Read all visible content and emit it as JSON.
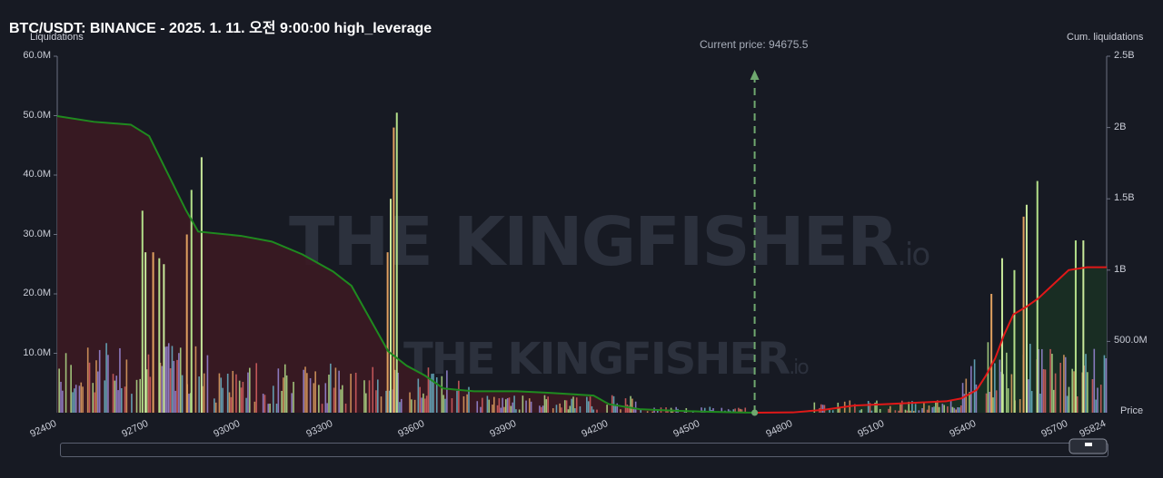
{
  "title": "BTC/USDT: BINANCE - 2025. 1. 11. 오전 9:00:00 high_leverage",
  "left_axis_title": "Liquidations",
  "right_axis_title": "Cum. liquidations",
  "x_axis_title": "Price",
  "current_price_label": "Current price: 94675.5",
  "watermark": {
    "brand": "THE KINGFISHER",
    "suffix": ".io"
  },
  "colors": {
    "background": "#171a23",
    "cum_left": "#1f8a1f",
    "cum_right": "#e01818",
    "bar_green": "#b4e08a",
    "bar_orange": "#e0a060",
    "bar_purple": "#9a8ad8",
    "bar_red": "#d86060",
    "bar_teal": "#6ab4c8",
    "fill_left": "#3b1a22",
    "fill_right": "#1a3024"
  },
  "chart_data": {
    "type": "bar",
    "title": "BTC/USDT: BINANCE - 2025. 1. 11. 오전 9:00:00 high_leverage",
    "xlabel": "Price",
    "ylabel": "Liquidations",
    "y2label": "Cum. liquidations",
    "xlim": [
      92400,
      95824
    ],
    "ylim": [
      0,
      60000000
    ],
    "y2lim": [
      0,
      2500000000
    ],
    "x_ticks": [
      "92400",
      "92700",
      "93000",
      "93300",
      "93600",
      "93900",
      "94200",
      "94500",
      "94800",
      "95100",
      "95400",
      "95700",
      "95824"
    ],
    "y_ticks": [
      "10.0M",
      "20.0M",
      "30.0M",
      "40.0M",
      "50.0M",
      "60.0M"
    ],
    "y2_ticks": [
      "500.0M",
      "1B",
      "1.5B",
      "2B",
      "2.5B"
    ],
    "current_price": 94675.5,
    "major_bars": [
      {
        "x": 92675,
        "value": 34000000
      },
      {
        "x": 92685,
        "value": 27000000
      },
      {
        "x": 92710,
        "value": 27000000
      },
      {
        "x": 92730,
        "value": 26000000
      },
      {
        "x": 92745,
        "value": 25000000
      },
      {
        "x": 92820,
        "value": 30000000
      },
      {
        "x": 92835,
        "value": 37500000
      },
      {
        "x": 92868,
        "value": 43000000
      },
      {
        "x": 93495,
        "value": 48000000
      },
      {
        "x": 93505,
        "value": 50500000
      },
      {
        "x": 93485,
        "value": 36000000
      },
      {
        "x": 93475,
        "value": 27000000
      },
      {
        "x": 95595,
        "value": 39000000
      },
      {
        "x": 95560,
        "value": 35000000
      },
      {
        "x": 95550,
        "value": 33000000
      },
      {
        "x": 95720,
        "value": 29000000
      },
      {
        "x": 95745,
        "value": 29000000
      },
      {
        "x": 95445,
        "value": 20000000
      },
      {
        "x": 95520,
        "value": 24000000
      },
      {
        "x": 95480,
        "value": 26000000
      }
    ],
    "series": [
      {
        "name": "Cum. liquidations",
        "x": [
          92400,
          92520,
          92640,
          92700,
          92760,
          92820,
          92860,
          93000,
          93100,
          93200,
          93300,
          93360,
          93420,
          93480,
          93540,
          93600,
          93660,
          93760,
          93900,
          94000,
          94150,
          94200,
          94300,
          94400,
          94500,
          94600,
          94675.5
        ],
        "values": [
          2080000000,
          2040000000,
          2020000000,
          1940000000,
          1680000000,
          1420000000,
          1270000000,
          1240000000,
          1200000000,
          1110000000,
          990000000,
          890000000,
          660000000,
          430000000,
          330000000,
          260000000,
          170000000,
          150000000,
          150000000,
          140000000,
          120000000,
          60000000,
          25000000,
          15000000,
          8000000,
          3000000,
          0
        ]
      },
      {
        "name": "Cum. liquidations (short)",
        "x": [
          94675.5,
          94800,
          94900,
          95000,
          95100,
          95200,
          95300,
          95350,
          95400,
          95430,
          95460,
          95490,
          95520,
          95560,
          95600,
          95650,
          95700,
          95760,
          95824
        ],
        "values": [
          0,
          2000000,
          20000000,
          50000000,
          60000000,
          70000000,
          80000000,
          100000000,
          160000000,
          260000000,
          380000000,
          550000000,
          690000000,
          740000000,
          800000000,
          900000000,
          1000000000,
          1020000000,
          1020000000
        ]
      }
    ]
  }
}
